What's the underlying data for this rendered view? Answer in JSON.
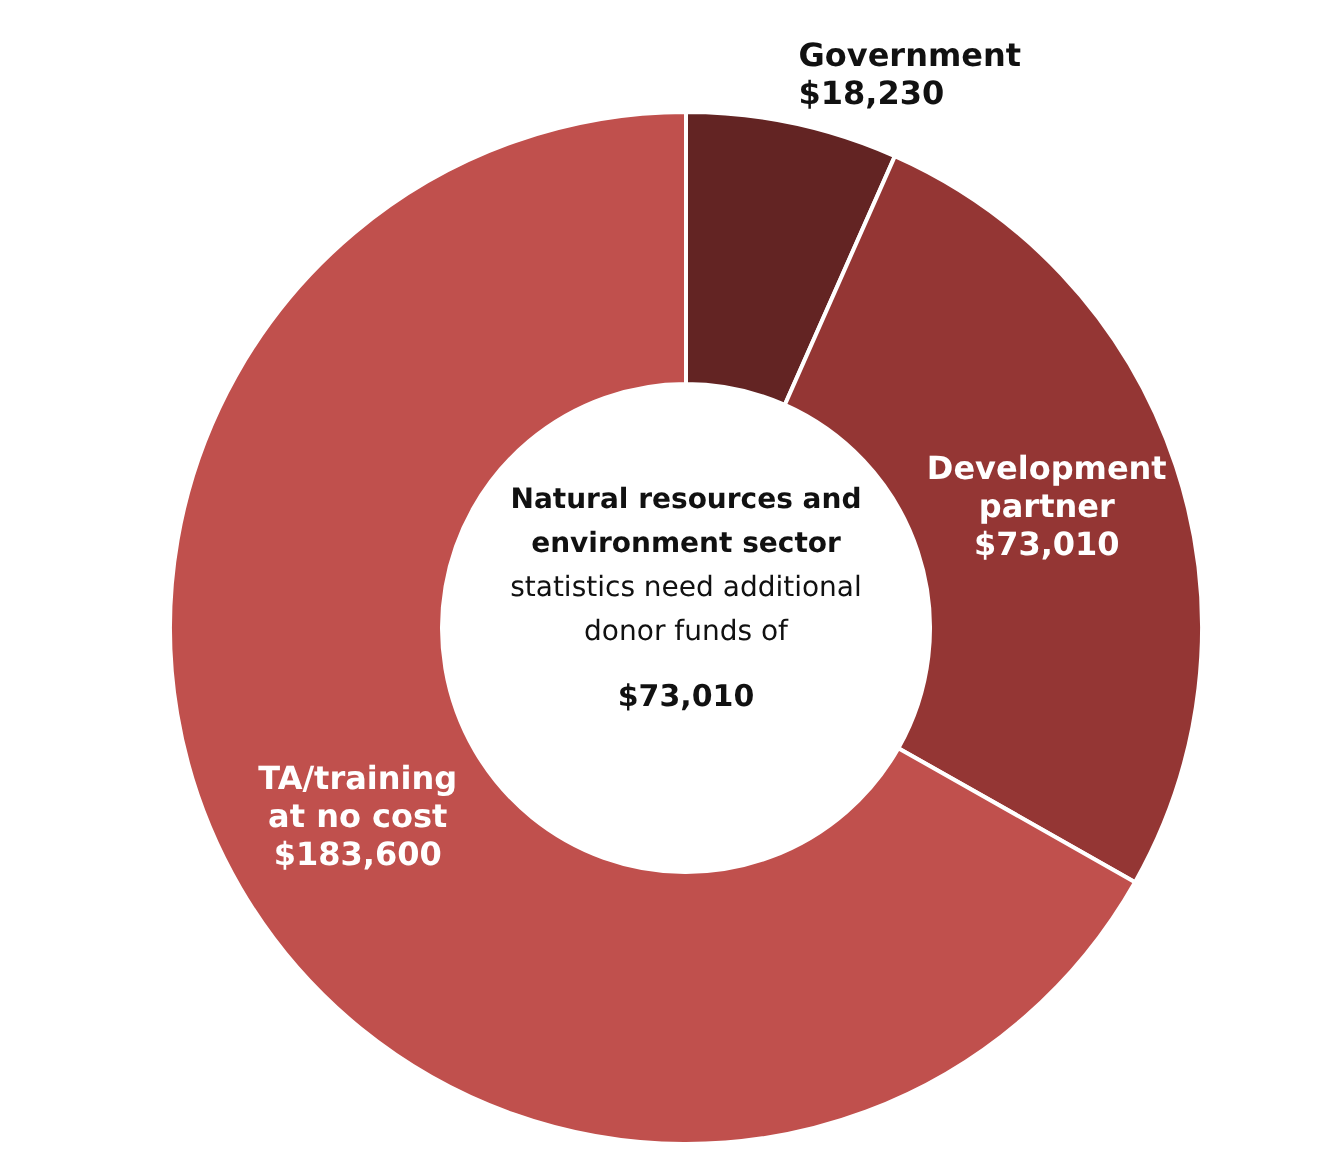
{
  "chart_data": {
    "type": "donut",
    "categories": [
      "Government",
      "Development partner",
      "TA/training at no cost"
    ],
    "values": [
      18230,
      73010,
      183600
    ],
    "colors": [
      "#632423",
      "#943634",
      "#c0504d"
    ],
    "value_labels": [
      "$18,230",
      "$73,010",
      "$183,600"
    ],
    "annotations": [
      "Natural resources and environment sector",
      "statistics need additional donor funds of",
      "$73,010"
    ],
    "legend": false
  }
}
